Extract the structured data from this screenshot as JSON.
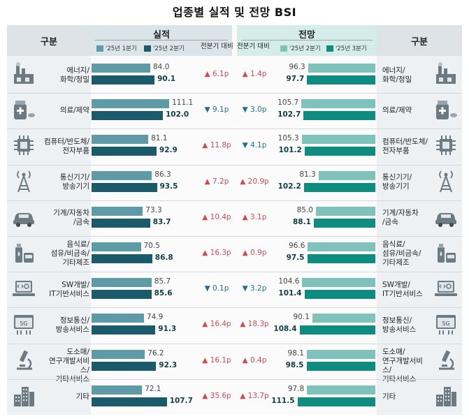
{
  "title": "업종별 실적 및 전망 BSI",
  "header": {
    "category_label": "구분",
    "actual_title": "실적",
    "forecast_title": "전망",
    "change_label": "전분기 대비"
  },
  "colors": {
    "actual_prev": "#5e9ba6",
    "actual_curr": "#1b5a6a",
    "forecast_prev": "#7ec2bb",
    "forecast_curr": "#0f8c80",
    "up": "#d04a52",
    "down": "#1c6f99"
  },
  "chart_data": {
    "type": "bar",
    "categories": [
      "에너지/\n화학/정밀",
      "의료/제약",
      "컴퓨터/반도체/\n전자부품",
      "통신기기/\n방송기기",
      "기계/자동차\n/금속",
      "음식료/\n섬유/비금속/\n기타제조",
      "SW개발/\nIT기반서비스",
      "정보통신/\n방송서비스",
      "도소매/\n연구개발서비스/\n기타서비스",
      "기타"
    ],
    "icons": [
      "factory-icon",
      "medicine-icon",
      "chip-icon",
      "antenna-tower-icon",
      "car-icon",
      "food-bottle-icon",
      "laptop-code-icon",
      "5g-network-icon",
      "microscope-icon",
      "buildings-icon"
    ],
    "actual": {
      "series": [
        {
          "name": "'25년 1분기",
          "values": [
            84.0,
            111.1,
            81.1,
            86.3,
            73.3,
            70.5,
            85.7,
            74.9,
            76.2,
            72.1
          ]
        },
        {
          "name": "'25년 2분기",
          "values": [
            90.1,
            102.0,
            92.9,
            93.5,
            83.7,
            86.8,
            85.6,
            91.3,
            92.3,
            107.7
          ]
        }
      ],
      "change_labels": [
        "6.1p",
        "9.1p",
        "11.8p",
        "7.2p",
        "10.4p",
        "16.3p",
        "0.1p",
        "16.4p",
        "16.1p",
        "35.6p"
      ],
      "change_direction": [
        "up",
        "down",
        "up",
        "up",
        "up",
        "up",
        "down",
        "up",
        "up",
        "up"
      ]
    },
    "forecast": {
      "series": [
        {
          "name": "'25년 2분기",
          "values": [
            96.3,
            105.7,
            105.3,
            81.3,
            85.0,
            96.6,
            104.6,
            90.1,
            98.1,
            97.8
          ]
        },
        {
          "name": "'25년 3분기",
          "values": [
            97.7,
            102.7,
            101.2,
            102.2,
            88.1,
            97.5,
            101.4,
            108.4,
            98.5,
            111.5
          ]
        }
      ],
      "change_labels": [
        "1.4p",
        "3.0p",
        "4.1p",
        "20.9p",
        "3.1p",
        "0.9p",
        "3.2p",
        "18.3p",
        "0.4p",
        "13.7p"
      ],
      "change_direction": [
        "up",
        "down",
        "down",
        "up",
        "up",
        "up",
        "down",
        "up",
        "up",
        "up"
      ]
    }
  }
}
